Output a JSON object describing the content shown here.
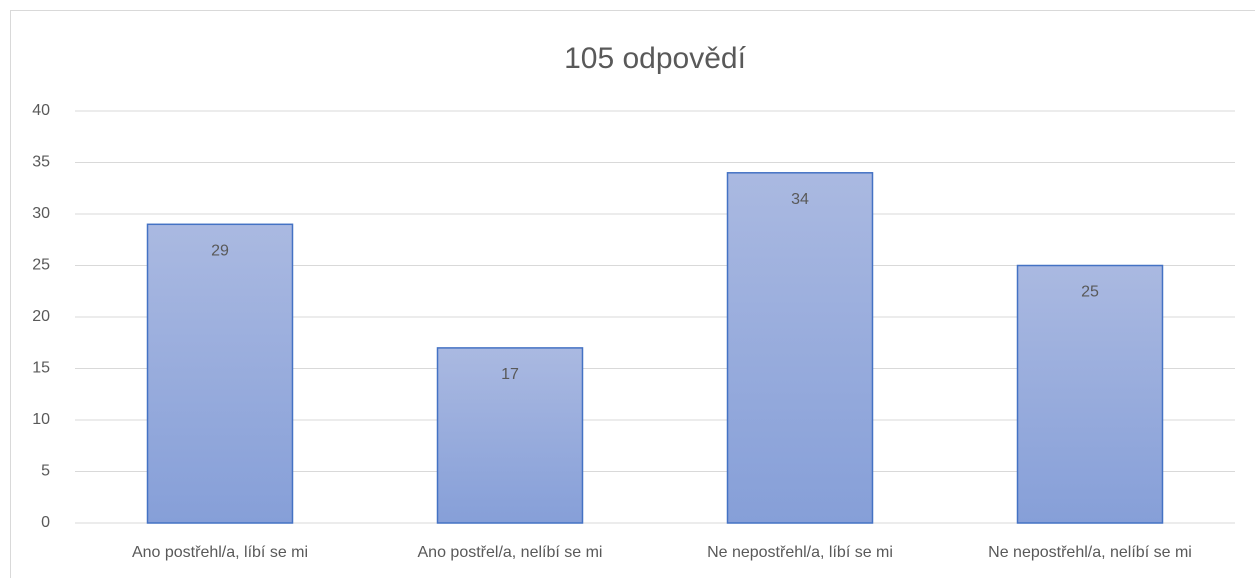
{
  "chart_data": {
    "type": "bar",
    "title": "105 odpovědí",
    "categories": [
      "Ano postřehl/a, líbí se mi",
      "Ano postřel/a, nelíbí se mi",
      "Ne nepostřehl/a, líbí se mi",
      "Ne nepostřehl/a, nelíbí se mi"
    ],
    "values": [
      29,
      17,
      34,
      25
    ],
    "color": "#4472c4",
    "ylim": [
      0,
      40
    ],
    "yticks": [
      0,
      5,
      10,
      15,
      20,
      25,
      30,
      35,
      40
    ],
    "grid": true
  }
}
